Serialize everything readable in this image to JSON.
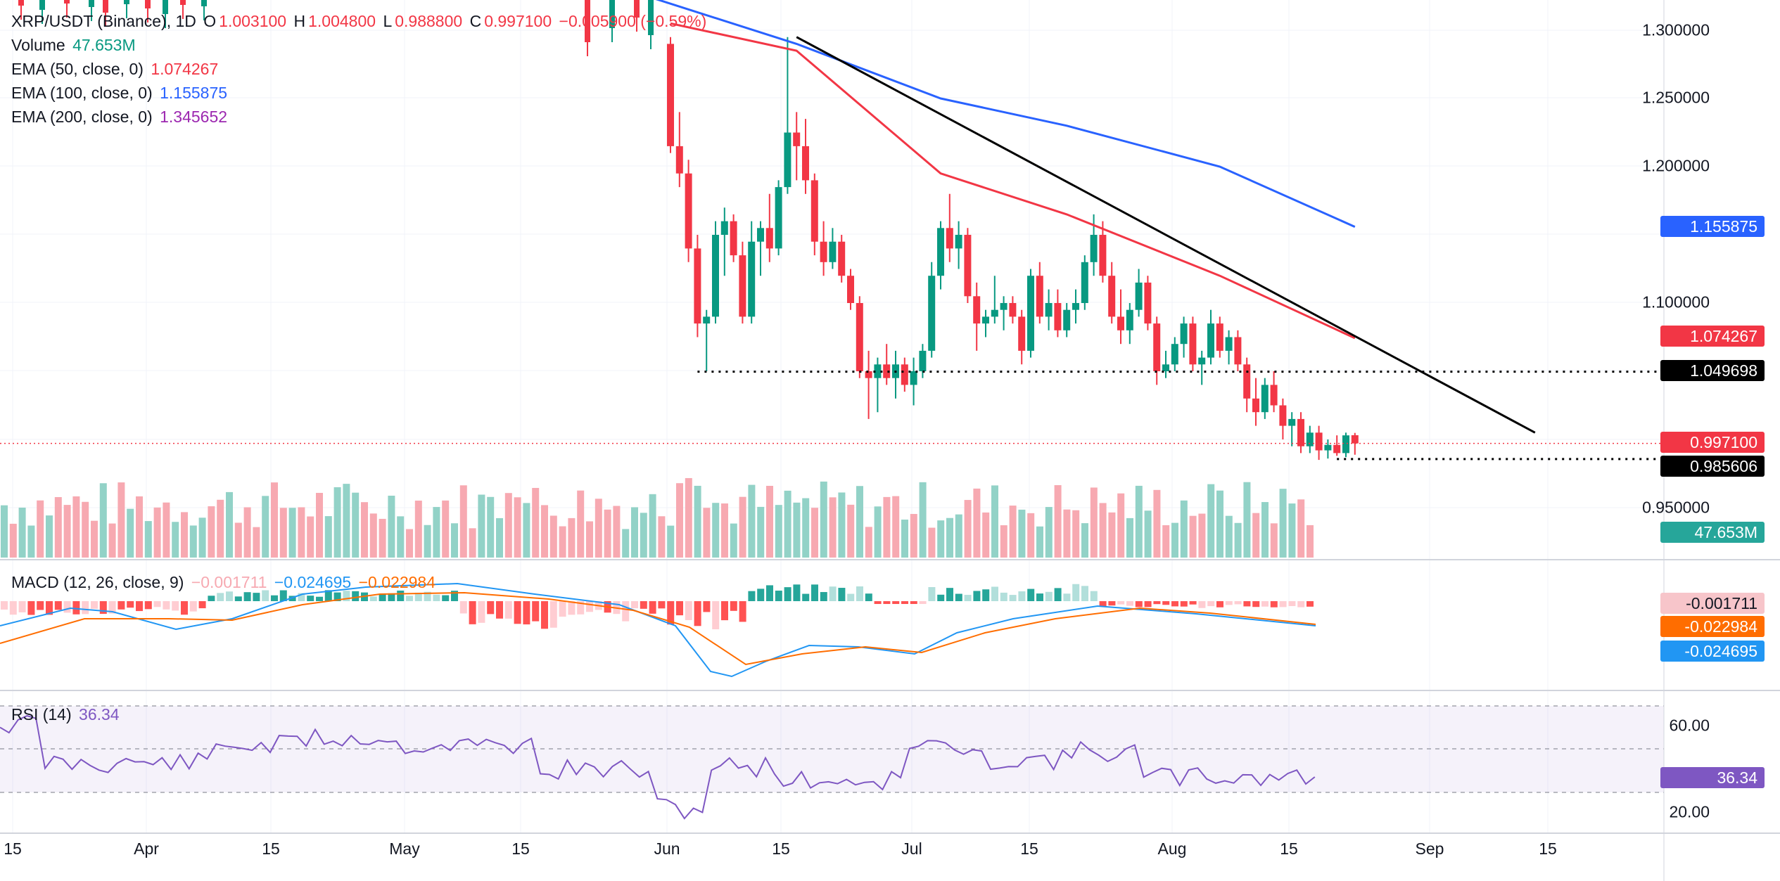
{
  "legend": {
    "symbol": "XRP/USDT (Binance), 1D",
    "o_label": "O",
    "o_value": "1.003100",
    "h_label": "H",
    "h_value": "1.004800",
    "l_label": "L",
    "l_value": "0.988800",
    "c_label": "C",
    "c_value": "0.997100",
    "change": "−0.005900 (−0.59%)",
    "volume_label": "Volume",
    "volume_value": "47.653M",
    "ema50_label": "EMA (50, close, 0)",
    "ema50_value": "1.074267",
    "ema100_label": "EMA (100, close, 0)",
    "ema100_value": "1.155875",
    "ema200_label": "EMA (200, close, 0)",
    "ema200_value": "1.345652",
    "macd_label": "MACD (12, 26, close, 9)",
    "macd_hist": "−0.001711",
    "macd_line": "−0.024695",
    "macd_signal": "−0.022984",
    "rsi_label": "RSI (14)",
    "rsi_value": "36.34"
  },
  "price_axis": {
    "ticks": [
      "1.300000",
      "1.250000",
      "1.200000",
      "1.100000",
      "0.950000"
    ]
  },
  "badges": {
    "ema100": "1.155875",
    "ema50": "1.074267",
    "support_high": "1.049698",
    "last": "0.997100",
    "support_low": "0.985606",
    "volume": "47.653M",
    "macd_hist": "-0.001711",
    "macd_signal": "-0.022984",
    "macd_line": "-0.024695",
    "rsi": "36.34"
  },
  "rsi_axis": {
    "ticks": [
      "60.00",
      "20.00"
    ]
  },
  "time_axis": {
    "labels": [
      "15",
      "Apr",
      "15",
      "May",
      "15",
      "Jun",
      "15",
      "Jul",
      "15",
      "Aug",
      "15",
      "Sep",
      "15"
    ]
  },
  "colors": {
    "up": "#089981",
    "down": "#f23645",
    "up_vol": "#92d2c7",
    "down_vol": "#f7a9b1",
    "ema50": "#f23645",
    "ema100": "#2962ff",
    "ema200": "#9c27b0",
    "macd": "#2196f3",
    "signal": "#ff6d00",
    "rsi": "#7e57c2",
    "trendline": "#000000"
  },
  "chart_data": {
    "type": "candlestick",
    "symbol": "XRP/USDT",
    "exchange": "Binance",
    "interval": "1D",
    "price_range": [
      0.92,
      1.31
    ],
    "candles_from_jun_1": [
      {
        "date": "Jun 1",
        "o": 1.29,
        "h": 1.295,
        "l": 1.21,
        "c": 1.215
      },
      {
        "date": "Jun 2",
        "o": 1.215,
        "h": 1.24,
        "l": 1.185,
        "c": 1.195
      },
      {
        "date": "Jun 3",
        "o": 1.195,
        "h": 1.205,
        "l": 1.13,
        "c": 1.14
      },
      {
        "date": "Jun 4",
        "o": 1.14,
        "h": 1.15,
        "l": 1.075,
        "c": 1.085
      },
      {
        "date": "Jun 5",
        "o": 1.085,
        "h": 1.095,
        "l": 1.05,
        "c": 1.09
      },
      {
        "date": "Jun 6",
        "o": 1.09,
        "h": 1.16,
        "l": 1.085,
        "c": 1.15
      },
      {
        "date": "Jun 7",
        "o": 1.15,
        "h": 1.17,
        "l": 1.12,
        "c": 1.16
      },
      {
        "date": "Jun 8",
        "o": 1.16,
        "h": 1.165,
        "l": 1.13,
        "c": 1.135
      },
      {
        "date": "Jun 9",
        "o": 1.135,
        "h": 1.145,
        "l": 1.085,
        "c": 1.09
      },
      {
        "date": "Jun 10",
        "o": 1.09,
        "h": 1.16,
        "l": 1.085,
        "c": 1.145
      },
      {
        "date": "Jun 11",
        "o": 1.145,
        "h": 1.16,
        "l": 1.12,
        "c": 1.155
      },
      {
        "date": "Jun 12",
        "o": 1.155,
        "h": 1.18,
        "l": 1.13,
        "c": 1.14
      },
      {
        "date": "Jun 13",
        "o": 1.14,
        "h": 1.19,
        "l": 1.135,
        "c": 1.185
      },
      {
        "date": "Jun 14",
        "o": 1.185,
        "h": 1.295,
        "l": 1.18,
        "c": 1.225
      },
      {
        "date": "Jun 15",
        "o": 1.225,
        "h": 1.24,
        "l": 1.19,
        "c": 1.215
      },
      {
        "date": "Jun 16",
        "o": 1.215,
        "h": 1.235,
        "l": 1.18,
        "c": 1.19
      },
      {
        "date": "Jun 17",
        "o": 1.19,
        "h": 1.195,
        "l": 1.135,
        "c": 1.145
      },
      {
        "date": "Jun 18",
        "o": 1.145,
        "h": 1.16,
        "l": 1.12,
        "c": 1.13
      },
      {
        "date": "Jun 19",
        "o": 1.13,
        "h": 1.155,
        "l": 1.125,
        "c": 1.145
      },
      {
        "date": "Jun 20",
        "o": 1.145,
        "h": 1.15,
        "l": 1.115,
        "c": 1.12
      },
      {
        "date": "Jun 21",
        "o": 1.12,
        "h": 1.125,
        "l": 1.095,
        "c": 1.1
      },
      {
        "date": "Jun 22",
        "o": 1.1,
        "h": 1.105,
        "l": 1.045,
        "c": 1.05
      },
      {
        "date": "Jun 23",
        "o": 1.05,
        "h": 1.065,
        "l": 1.015,
        "c": 1.045
      },
      {
        "date": "Jun 24",
        "o": 1.045,
        "h": 1.06,
        "l": 1.02,
        "c": 1.055
      },
      {
        "date": "Jun 25",
        "o": 1.055,
        "h": 1.07,
        "l": 1.04,
        "c": 1.045
      },
      {
        "date": "Jun 26",
        "o": 1.045,
        "h": 1.065,
        "l": 1.03,
        "c": 1.055
      },
      {
        "date": "Jun 27",
        "o": 1.055,
        "h": 1.06,
        "l": 1.035,
        "c": 1.04
      },
      {
        "date": "Jun 28",
        "o": 1.04,
        "h": 1.06,
        "l": 1.025,
        "c": 1.05
      },
      {
        "date": "Jun 29",
        "o": 1.05,
        "h": 1.07,
        "l": 1.045,
        "c": 1.065
      },
      {
        "date": "Jun 30",
        "o": 1.065,
        "h": 1.13,
        "l": 1.06,
        "c": 1.12
      },
      {
        "date": "Jul 1",
        "o": 1.12,
        "h": 1.16,
        "l": 1.11,
        "c": 1.155
      },
      {
        "date": "Jul 2",
        "o": 1.155,
        "h": 1.18,
        "l": 1.13,
        "c": 1.14
      },
      {
        "date": "Jul 3",
        "o": 1.14,
        "h": 1.16,
        "l": 1.125,
        "c": 1.15
      },
      {
        "date": "Jul 4",
        "o": 1.15,
        "h": 1.155,
        "l": 1.1,
        "c": 1.105
      },
      {
        "date": "Jul 5",
        "o": 1.105,
        "h": 1.115,
        "l": 1.065,
        "c": 1.085
      },
      {
        "date": "Jul 6",
        "o": 1.085,
        "h": 1.095,
        "l": 1.075,
        "c": 1.09
      },
      {
        "date": "Jul 7",
        "o": 1.09,
        "h": 1.12,
        "l": 1.085,
        "c": 1.095
      },
      {
        "date": "Jul 8",
        "o": 1.095,
        "h": 1.105,
        "l": 1.08,
        "c": 1.1
      },
      {
        "date": "Jul 9",
        "o": 1.1,
        "h": 1.105,
        "l": 1.085,
        "c": 1.09
      },
      {
        "date": "Jul 10",
        "o": 1.09,
        "h": 1.095,
        "l": 1.055,
        "c": 1.065
      },
      {
        "date": "Jul 11",
        "o": 1.065,
        "h": 1.125,
        "l": 1.06,
        "c": 1.12
      },
      {
        "date": "Jul 12",
        "o": 1.12,
        "h": 1.13,
        "l": 1.085,
        "c": 1.09
      },
      {
        "date": "Jul 13",
        "o": 1.09,
        "h": 1.11,
        "l": 1.08,
        "c": 1.1
      },
      {
        "date": "Jul 14",
        "o": 1.1,
        "h": 1.11,
        "l": 1.075,
        "c": 1.08
      },
      {
        "date": "Jul 15",
        "o": 1.08,
        "h": 1.1,
        "l": 1.075,
        "c": 1.095
      },
      {
        "date": "Jul 16",
        "o": 1.095,
        "h": 1.11,
        "l": 1.085,
        "c": 1.1
      },
      {
        "date": "Jul 17",
        "o": 1.1,
        "h": 1.135,
        "l": 1.095,
        "c": 1.13
      },
      {
        "date": "Jul 18",
        "o": 1.13,
        "h": 1.165,
        "l": 1.12,
        "c": 1.15
      },
      {
        "date": "Jul 19",
        "o": 1.15,
        "h": 1.16,
        "l": 1.115,
        "c": 1.12
      },
      {
        "date": "Jul 20",
        "o": 1.12,
        "h": 1.13,
        "l": 1.085,
        "c": 1.09
      },
      {
        "date": "Jul 21",
        "o": 1.09,
        "h": 1.11,
        "l": 1.07,
        "c": 1.08
      },
      {
        "date": "Jul 22",
        "o": 1.08,
        "h": 1.1,
        "l": 1.07,
        "c": 1.095
      },
      {
        "date": "Jul 23",
        "o": 1.095,
        "h": 1.125,
        "l": 1.09,
        "c": 1.115
      },
      {
        "date": "Jul 24",
        "o": 1.115,
        "h": 1.12,
        "l": 1.08,
        "c": 1.085
      },
      {
        "date": "Jul 25",
        "o": 1.085,
        "h": 1.09,
        "l": 1.04,
        "c": 1.05
      },
      {
        "date": "Jul 26",
        "o": 1.05,
        "h": 1.065,
        "l": 1.045,
        "c": 1.055
      },
      {
        "date": "Jul 27",
        "o": 1.055,
        "h": 1.075,
        "l": 1.05,
        "c": 1.07
      },
      {
        "date": "Jul 28",
        "o": 1.07,
        "h": 1.09,
        "l": 1.06,
        "c": 1.085
      },
      {
        "date": "Jul 29",
        "o": 1.085,
        "h": 1.09,
        "l": 1.05,
        "c": 1.055
      },
      {
        "date": "Jul 30",
        "o": 1.055,
        "h": 1.065,
        "l": 1.04,
        "c": 1.06
      },
      {
        "date": "Jul 31",
        "o": 1.06,
        "h": 1.095,
        "l": 1.055,
        "c": 1.085
      },
      {
        "date": "Aug 1",
        "o": 1.085,
        "h": 1.09,
        "l": 1.06,
        "c": 1.065
      },
      {
        "date": "Aug 2",
        "o": 1.065,
        "h": 1.08,
        "l": 1.055,
        "c": 1.075
      },
      {
        "date": "Aug 3",
        "o": 1.075,
        "h": 1.08,
        "l": 1.05,
        "c": 1.055
      },
      {
        "date": "Aug 4",
        "o": 1.055,
        "h": 1.06,
        "l": 1.02,
        "c": 1.03
      },
      {
        "date": "Aug 5",
        "o": 1.03,
        "h": 1.045,
        "l": 1.01,
        "c": 1.02
      },
      {
        "date": "Aug 6",
        "o": 1.02,
        "h": 1.045,
        "l": 1.015,
        "c": 1.04
      },
      {
        "date": "Aug 7",
        "o": 1.04,
        "h": 1.05,
        "l": 1.02,
        "c": 1.025
      },
      {
        "date": "Aug 8",
        "o": 1.025,
        "h": 1.03,
        "l": 1.0,
        "c": 1.01
      },
      {
        "date": "Aug 9",
        "o": 1.01,
        "h": 1.02,
        "l": 0.995,
        "c": 1.015
      },
      {
        "date": "Aug 10",
        "o": 1.015,
        "h": 1.02,
        "l": 0.99,
        "c": 0.995
      },
      {
        "date": "Aug 11",
        "o": 0.995,
        "h": 1.01,
        "l": 0.99,
        "c": 1.005
      },
      {
        "date": "Aug 12",
        "o": 1.005,
        "h": 1.01,
        "l": 0.985,
        "c": 0.992
      },
      {
        "date": "Aug 13",
        "o": 0.992,
        "h": 1.0,
        "l": 0.986,
        "c": 0.996
      },
      {
        "date": "Aug 14",
        "o": 0.996,
        "h": 1.003,
        "l": 0.988,
        "c": 0.99
      },
      {
        "date": "Aug 15",
        "o": 0.99,
        "h": 1.005,
        "l": 0.987,
        "c": 1.003
      },
      {
        "date": "Aug 16",
        "o": 1.0031,
        "h": 1.0048,
        "l": 0.9888,
        "c": 0.9971
      }
    ],
    "ema50_key_points": [
      [
        "Jun 1",
        1.305
      ],
      [
        "Jun 15",
        1.285
      ],
      [
        "Jul 1",
        1.195
      ],
      [
        "Jul 15",
        1.165
      ],
      [
        "Aug 1",
        1.12
      ],
      [
        "Aug 16",
        1.074267
      ]
    ],
    "ema100_key_points": [
      [
        "May 27",
        1.33
      ],
      [
        "Jun 15",
        1.29
      ],
      [
        "Jul 1",
        1.25
      ],
      [
        "Jul 15",
        1.23
      ],
      [
        "Aug 1",
        1.2
      ],
      [
        "Aug 16",
        1.155875
      ]
    ],
    "ema200_last": 1.345652,
    "trendline": {
      "from": [
        "Jun 15",
        1.295
      ],
      "to": [
        "Sep 5",
        1.005
      ]
    },
    "horizontal_levels": [
      {
        "value": 1.049698,
        "from": "Jun 4"
      },
      {
        "value": 0.985606,
        "from": "Aug 14"
      }
    ],
    "last_price": 0.9971,
    "volume_last": "47.653M",
    "macd": {
      "macd": -0.024695,
      "signal": -0.022984,
      "histogram": -0.001711
    },
    "rsi": {
      "period": 14,
      "value": 36.34,
      "bands": [
        70,
        50,
        30
      ],
      "ticks": [
        60,
        20
      ]
    },
    "x_axis_labels": [
      "15",
      "Apr",
      "15",
      "May",
      "15",
      "Jun",
      "15",
      "Jul",
      "15",
      "Aug",
      "15",
      "Sep",
      "15"
    ]
  }
}
